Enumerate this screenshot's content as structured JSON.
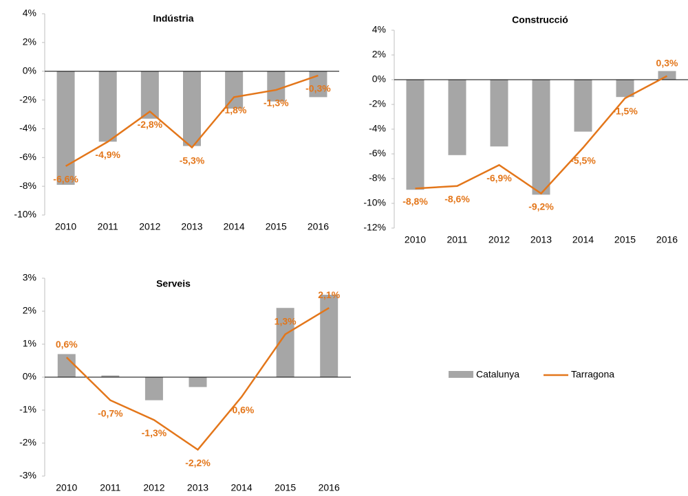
{
  "chart_data": [
    {
      "type": "bar+line",
      "title": "Indústria",
      "categories": [
        "2010",
        "2011",
        "2012",
        "2013",
        "2014",
        "2015",
        "2016"
      ],
      "series": [
        {
          "name": "Catalunya",
          "type": "bar",
          "color": "#a6a6a6",
          "values": [
            -7.9,
            -4.9,
            -3.3,
            -5.2,
            -2.6,
            -2.1,
            -1.8
          ]
        },
        {
          "name": "Tarragona",
          "type": "line",
          "color": "#e3761a",
          "values": [
            -6.6,
            -4.9,
            -2.8,
            -5.3,
            -1.8,
            -1.3,
            -0.3
          ],
          "value_labels": [
            "-6,6%",
            "-4,9%",
            "-2,8%",
            "-5,3%",
            "-1,8%",
            "-1,3%",
            "-0,3%"
          ]
        }
      ],
      "ylim": [
        -10,
        4
      ],
      "yticks": [
        {
          "value": -10,
          "label": "-10%"
        },
        {
          "value": -8,
          "label": "-8%"
        },
        {
          "value": -6,
          "label": "-6%"
        },
        {
          "value": -4,
          "label": "-4%"
        },
        {
          "value": -2,
          "label": "-2%"
        },
        {
          "value": 0,
          "label": "0%"
        },
        {
          "value": 2,
          "label": "2%"
        },
        {
          "value": 4,
          "label": "4%"
        }
      ]
    },
    {
      "type": "bar+line",
      "title": "Construcció",
      "categories": [
        "2010",
        "2011",
        "2012",
        "2013",
        "2014",
        "2015",
        "2016"
      ],
      "series": [
        {
          "name": "Catalunya",
          "type": "bar",
          "color": "#a6a6a6",
          "values": [
            -8.9,
            -6.1,
            -5.4,
            -9.3,
            -4.2,
            -1.4,
            0.7
          ]
        },
        {
          "name": "Tarragona",
          "type": "line",
          "color": "#e3761a",
          "values": [
            -8.8,
            -8.6,
            -6.9,
            -9.2,
            -5.5,
            -1.5,
            0.3
          ],
          "value_labels": [
            "-8,8%",
            "-8,6%",
            "-6,9%",
            "-9,2%",
            "-5,5%",
            "-1,5%",
            "0,3%"
          ]
        }
      ],
      "ylim": [
        -12,
        4
      ],
      "yticks": [
        {
          "value": -12,
          "label": "-12%"
        },
        {
          "value": -10,
          "label": "-10%"
        },
        {
          "value": -8,
          "label": "-8%"
        },
        {
          "value": -6,
          "label": "-6%"
        },
        {
          "value": -4,
          "label": "-4%"
        },
        {
          "value": -2,
          "label": "-2%"
        },
        {
          "value": 0,
          "label": "0%"
        },
        {
          "value": 2,
          "label": "2%"
        },
        {
          "value": 4,
          "label": "4%"
        }
      ]
    },
    {
      "type": "bar+line",
      "title": "Serveis",
      "categories": [
        "2010",
        "2011",
        "2012",
        "2013",
        "2014",
        "2015",
        "2016"
      ],
      "series": [
        {
          "name": "Catalunya",
          "type": "bar",
          "color": "#a6a6a6",
          "values": [
            0.7,
            0.05,
            -0.7,
            -0.3,
            0,
            2.1,
            2.5
          ]
        },
        {
          "name": "Tarragona",
          "type": "line",
          "color": "#e3761a",
          "values": [
            0.6,
            -0.7,
            -1.3,
            -2.2,
            -0.6,
            1.3,
            2.1
          ],
          "value_labels": [
            "0,6%",
            "-0,7%",
            "-1,3%",
            "-2,2%",
            "-0,6%",
            "1,3%",
            "2,1%"
          ]
        }
      ],
      "ylim": [
        -3,
        3
      ],
      "yticks": [
        {
          "value": -3,
          "label": "-3%"
        },
        {
          "value": -2,
          "label": "-2%"
        },
        {
          "value": -1,
          "label": "-1%"
        },
        {
          "value": 0,
          "label": "0%"
        },
        {
          "value": 1,
          "label": "1%"
        },
        {
          "value": 2,
          "label": "2%"
        },
        {
          "value": 3,
          "label": "3%"
        }
      ]
    }
  ]
}
